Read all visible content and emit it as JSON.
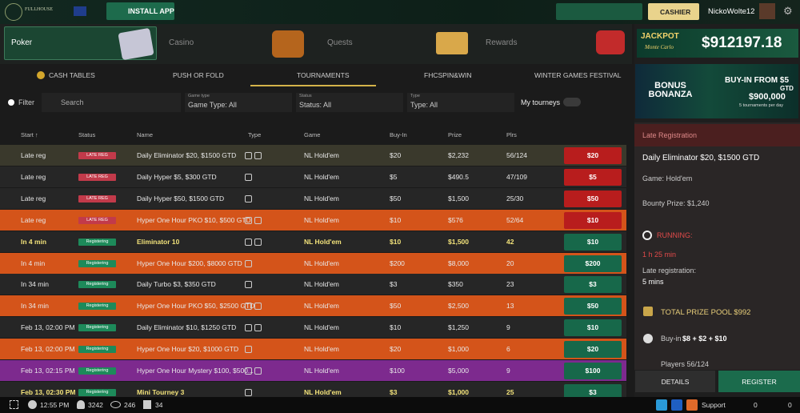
{
  "header": {
    "logo": "FULLHOUSE",
    "install_app": "INSTALL APP",
    "cashier": "CASHIER",
    "username": "NickoWolte12"
  },
  "nav": [
    "Poker",
    "Casino",
    "Quests",
    "Rewards"
  ],
  "jackpot": {
    "title": "JACKPOT",
    "subtitle": "Monte Carlo",
    "amount": "$912197.18"
  },
  "banner": {
    "title": "BONUS BONANZA",
    "line1": "BUY-IN FROM $5",
    "line2": "GTD",
    "amount": "$900,000",
    "note": "5 tournaments per day"
  },
  "tabs": [
    "CASH TABLES",
    "PUSH OR FOLD",
    "TOURNAMENTS",
    "FHCSPIN&WIN",
    "WINTER GAMES FESTIVAL"
  ],
  "filters": {
    "filter": "Filter",
    "search": "Search",
    "game_type_label": "Game type",
    "game_type": "Game Type: All",
    "status_label": "Status",
    "status": "Status: All",
    "type_label": "Type",
    "type": "Type: All",
    "my_tourneys": "My tourneys"
  },
  "table": {
    "headers": [
      "Start ↑",
      "Status",
      "Name",
      "Type",
      "Game",
      "Buy-In",
      "Prize",
      "Plrs"
    ],
    "rows": [
      {
        "start": "Late reg",
        "status": "LATE REG",
        "name": "Daily Eliminator $20, $1500 GTD",
        "game": "NL Hold'em",
        "buy_in": "$20",
        "prize": "$2,232",
        "players": "56/124",
        "button": "$20",
        "highlight": "#3a392c",
        "accent": "#b81d1d"
      },
      {
        "start": "Late reg",
        "status": "LATE REG",
        "name": "Daily Hyper $5, $300 GTD",
        "game": "NL Hold'em",
        "buy_in": "$5",
        "prize": "$490.5",
        "players": "47/109",
        "button": "$5",
        "highlight": "#262626",
        "accent": "#b81d1d"
      },
      {
        "start": "Late reg",
        "status": "LATE REG",
        "name": "Daily Hyper $50, $1500 GTD",
        "game": "NL Hold'em",
        "buy_in": "$50",
        "prize": "$1,500",
        "players": "25/30",
        "button": "$50",
        "highlight": "#262626",
        "accent": "#b81d1d"
      },
      {
        "start": "Late reg",
        "status": "LATE REG",
        "name": "Hyper One Hour PKO $10, $500 GTD",
        "game": "NL Hold'em",
        "buy_in": "$10",
        "prize": "$576",
        "players": "52/64",
        "button": "$10",
        "highlight": "#d4541a",
        "accent": "#b81d1d"
      },
      {
        "start": "In 4 min",
        "status": "Registering",
        "name": "Eliminator 10",
        "game": "NL Hold'em",
        "buy_in": "$10",
        "prize": "$1,500",
        "players": "42",
        "button": "$10",
        "highlight": "#262626",
        "accent": "#17684a",
        "bold": true
      },
      {
        "start": "In 4 min",
        "status": "Registering",
        "name": "Hyper One Hour $200, $8000 GTD",
        "game": "NL Hold'em",
        "buy_in": "$200",
        "prize": "$8,000",
        "players": "20",
        "button": "$200",
        "highlight": "#d4541a",
        "accent": "#17684a"
      },
      {
        "start": "In 34 min",
        "status": "Registering",
        "name": "Daily Turbo $3, $350 GTD",
        "game": "NL Hold'em",
        "buy_in": "$3",
        "prize": "$350",
        "players": "23",
        "button": "$3",
        "highlight": "#262626",
        "accent": "#17684a"
      },
      {
        "start": "In 34 min",
        "status": "Registering",
        "name": "Hyper One Hour PKO $50, $2500 GTD",
        "game": "NL Hold'em",
        "buy_in": "$50",
        "prize": "$2,500",
        "players": "13",
        "button": "$50",
        "highlight": "#d4541a",
        "accent": "#17684a"
      },
      {
        "start": "Feb 13, 02:00 PM",
        "status": "Registering",
        "name": "Daily Eliminator $10, $1250 GTD",
        "game": "NL Hold'em",
        "buy_in": "$10",
        "prize": "$1,250",
        "players": "9",
        "button": "$10",
        "highlight": "#262626",
        "accent": "#17684a"
      },
      {
        "start": "Feb 13, 02:00 PM",
        "status": "Registering",
        "name": "Hyper One Hour $20, $1000 GTD",
        "game": "NL Hold'em",
        "buy_in": "$20",
        "prize": "$1,000",
        "players": "6",
        "button": "$20",
        "highlight": "#d4541a",
        "accent": "#17684a"
      },
      {
        "start": "Feb 13, 02:15 PM",
        "status": "Registering",
        "name": "Hyper One Hour Mystery $100, $500...",
        "game": "NL Hold'em",
        "buy_in": "$100",
        "prize": "$5,000",
        "players": "9",
        "button": "$100",
        "highlight": "#7d2a8e",
        "accent": "#17684a"
      },
      {
        "start": "Feb 13, 02:30 PM",
        "status": "Registering",
        "name": "Mini Tourney 3",
        "game": "NL Hold'em",
        "buy_in": "$3",
        "prize": "$1,000",
        "players": "25",
        "button": "$3",
        "highlight": "#262626",
        "accent": "#17684a",
        "bold": true
      }
    ]
  },
  "details": {
    "section": "Late Registration",
    "name": "Daily Eliminator $20, $1500 GTD",
    "game": "Game: Hold'em",
    "bounty": "Bounty Prize: $1,240",
    "running": "RUNNING:",
    "running_time": "1 h 25 min",
    "late_reg_label": "Late registration:",
    "late_reg_time": "5 mins",
    "prize_pool": "TOTAL PRIZE POOL $992",
    "buy_in_label": "Buy-in",
    "buy_in": "$8 + $2 + $10",
    "players": "Players 56/124",
    "details_btn": "DETAILS",
    "register_btn": "REGISTER"
  },
  "footer": {
    "time": "12:55 PM",
    "players": "3242",
    "tables": "246",
    "tournaments": "34",
    "support": "Support",
    "count_1": "0",
    "count_2": "0"
  }
}
